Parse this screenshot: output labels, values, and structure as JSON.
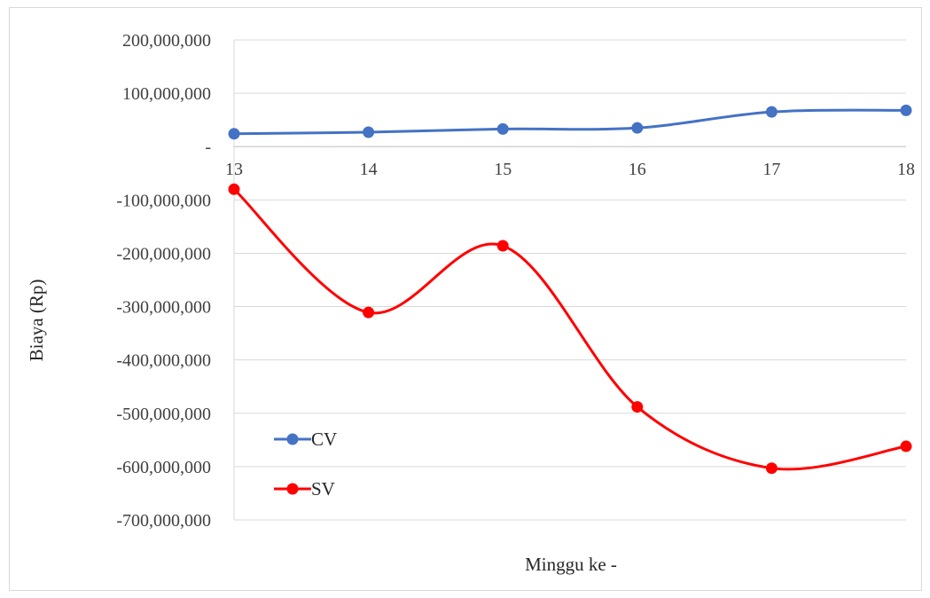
{
  "chart_data": {
    "type": "line",
    "title": "",
    "xlabel": "Minggu ke -",
    "ylabel": "Biaya (Rp)",
    "categories": [
      "13",
      "14",
      "15",
      "16",
      "17",
      "18"
    ],
    "y_ticks": [
      {
        "value": 200000000,
        "label": "200,000,000"
      },
      {
        "value": 100000000,
        "label": "100,000,000"
      },
      {
        "value": 0,
        "label": "-"
      },
      {
        "value": -100000000,
        "label": "-100,000,000"
      },
      {
        "value": -200000000,
        "label": "-200,000,000"
      },
      {
        "value": -300000000,
        "label": "-300,000,000"
      },
      {
        "value": -400000000,
        "label": "-400,000,000"
      },
      {
        "value": -500000000,
        "label": "-500,000,000"
      },
      {
        "value": -600000000,
        "label": "-600,000,000"
      },
      {
        "value": -700000000,
        "label": "-700,000,000"
      }
    ],
    "ylim": [
      -700000000,
      200000000
    ],
    "grid": true,
    "smooth": true,
    "legend_position": "bottom-left",
    "series": [
      {
        "name": "CV",
        "color": "#4472c4",
        "values": [
          24000000,
          27000000,
          33000000,
          35000000,
          65000000,
          68000000
        ]
      },
      {
        "name": "SV",
        "color": "#ff0000",
        "values": [
          -80000000,
          -311000000,
          -186000000,
          -488000000,
          -603000000,
          -562000000
        ]
      }
    ]
  }
}
